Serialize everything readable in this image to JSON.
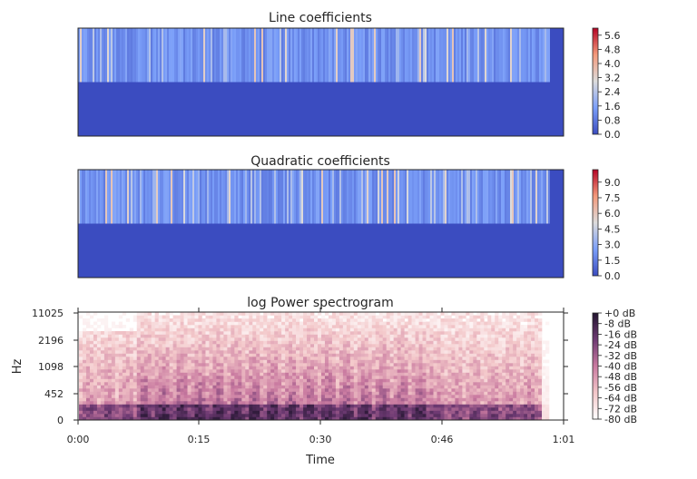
{
  "chart_data": [
    {
      "type": "heatmap",
      "title": "Line coefficients",
      "rows": 2,
      "colorbar": {
        "ticks": [
          "0.0",
          "0.8",
          "1.6",
          "2.4",
          "3.2",
          "4.0",
          "4.8",
          "5.6"
        ],
        "range": [
          0,
          6.0
        ],
        "colormap": "coolwarm"
      }
    },
    {
      "type": "heatmap",
      "title": "Quadratic coefficients",
      "rows": 2,
      "colorbar": {
        "ticks": [
          "0.0",
          "1.5",
          "3.0",
          "4.5",
          "6.0",
          "7.5",
          "9.0"
        ],
        "range": [
          0,
          10.2
        ],
        "colormap": "coolwarm"
      }
    },
    {
      "type": "heatmap",
      "title": "log Power spectrogram",
      "xlabel": "Time",
      "ylabel": "Hz",
      "xticks": [
        "0:00",
        "0:15",
        "0:30",
        "0:46",
        "1:01"
      ],
      "yticks": [
        "0",
        "452",
        "1098",
        "2196",
        "11025"
      ],
      "colorbar": {
        "ticks": [
          "+0 dB",
          "-8 dB",
          "-16 dB",
          "-24 dB",
          "-32 dB",
          "-40 dB",
          "-48 dB",
          "-56 dB",
          "-64 dB",
          "-72 dB",
          "-80 dB"
        ],
        "range": [
          -80,
          0
        ],
        "colormap": "magma_r"
      }
    }
  ]
}
